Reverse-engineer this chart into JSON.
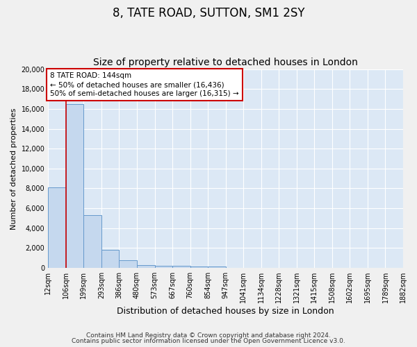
{
  "title1": "8, TATE ROAD, SUTTON, SM1 2SY",
  "title2": "Size of property relative to detached houses in London",
  "xlabel": "Distribution of detached houses by size in London",
  "ylabel": "Number of detached properties",
  "footer1": "Contains HM Land Registry data © Crown copyright and database right 2024.",
  "footer2": "Contains public sector information licensed under the Open Government Licence v3.0.",
  "bin_labels": [
    "12sqm",
    "106sqm",
    "199sqm",
    "293sqm",
    "386sqm",
    "480sqm",
    "573sqm",
    "667sqm",
    "760sqm",
    "854sqm",
    "947sqm",
    "1041sqm",
    "1134sqm",
    "1228sqm",
    "1321sqm",
    "1415sqm",
    "1508sqm",
    "1602sqm",
    "1695sqm",
    "1789sqm",
    "1882sqm"
  ],
  "bar_values": [
    8100,
    16500,
    5300,
    1850,
    750,
    300,
    225,
    200,
    175,
    150,
    0,
    0,
    0,
    0,
    0,
    0,
    0,
    0,
    0,
    0
  ],
  "bar_color": "#c5d8ee",
  "bar_edge_color": "#6699cc",
  "plot_bg_color": "#dce8f5",
  "fig_bg_color": "#f0f0f0",
  "red_line_color": "#cc0000",
  "red_line_x": 1.0,
  "annotation_text": "8 TATE ROAD: 144sqm\n← 50% of detached houses are smaller (16,436)\n50% of semi-detached houses are larger (16,315) →",
  "annotation_box_color": "#ffffff",
  "annotation_box_edge": "#cc0000",
  "ylim": [
    0,
    20000
  ],
  "yticks": [
    0,
    2000,
    4000,
    6000,
    8000,
    10000,
    12000,
    14000,
    16000,
    18000,
    20000
  ],
  "grid_color": "#ffffff",
  "title1_fontsize": 12,
  "title2_fontsize": 10,
  "ylabel_fontsize": 8,
  "xlabel_fontsize": 9,
  "tick_fontsize": 7,
  "footer_fontsize": 6.5
}
